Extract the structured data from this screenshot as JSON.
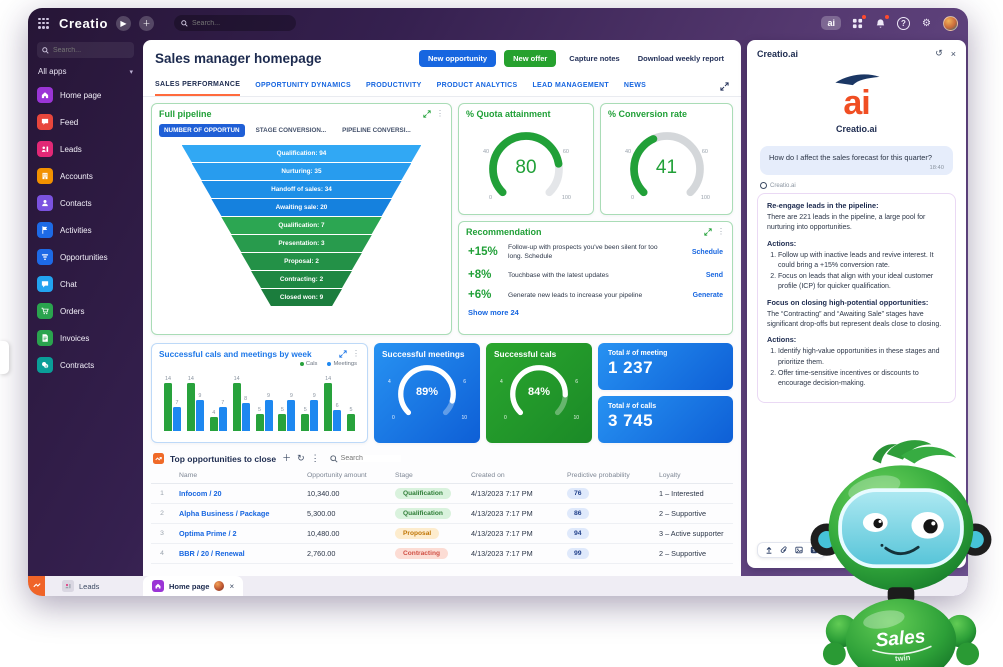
{
  "topbar": {
    "logo": "Creatio",
    "search_placeholder": "Search...",
    "ai_button": "ai"
  },
  "sidebar": {
    "search_placeholder": "Search...",
    "all_apps": "All apps",
    "items": [
      {
        "label": "Home page"
      },
      {
        "label": "Feed"
      },
      {
        "label": "Leads"
      },
      {
        "label": "Accounts"
      },
      {
        "label": "Contacts"
      },
      {
        "label": "Activities"
      },
      {
        "label": "Opportunities"
      },
      {
        "label": "Chat"
      },
      {
        "label": "Orders"
      },
      {
        "label": "Invoices"
      },
      {
        "label": "Contracts"
      }
    ]
  },
  "main": {
    "title": "Sales manager homepage",
    "buttons": {
      "new_opportunity": "New opportunity",
      "new_offer": "New offer",
      "capture_notes": "Capture notes",
      "download_report": "Download weekly report"
    },
    "tabs": [
      {
        "label": "SALES PERFORMANCE"
      },
      {
        "label": "OPPORTUNITY DYNAMICS"
      },
      {
        "label": "PRODUCTIVITY"
      },
      {
        "label": "PRODUCT ANALYTICS"
      },
      {
        "label": "LEAD MANAGEMENT"
      },
      {
        "label": "NEWS"
      }
    ]
  },
  "widgets": {
    "full_pipeline": {
      "title": "Full pipeline",
      "tabs": [
        "NUMBER OF OPPORTUN",
        "STAGE CONVERSION...",
        "PIPELINE CONVERSI..."
      ],
      "stages": [
        {
          "display": "Qualification:  94",
          "value": 94,
          "color": "#31a8f4"
        },
        {
          "display": "Nurturing:  35",
          "value": 35,
          "color": "#289cee"
        },
        {
          "display": "Handoff of sales:  34",
          "value": 34,
          "color": "#1e8fe7"
        },
        {
          "display": "Awaiting sale:  20",
          "value": 20,
          "color": "#1581de"
        },
        {
          "display": "Qualification:  7",
          "value": 7,
          "color": "#2ca652"
        },
        {
          "display": "Presentation:  3",
          "value": 3,
          "color": "#289b4d"
        },
        {
          "display": "Proposal:  2",
          "value": 2,
          "color": "#239147"
        },
        {
          "display": "Contracting:  2",
          "value": 2,
          "color": "#1f8742"
        },
        {
          "display": "Closed won:  9",
          "value": 9,
          "color": "#1b7d3d"
        }
      ]
    },
    "quota": {
      "title": "% Quota attainment",
      "value": 80,
      "max": 100,
      "ticks": {
        "start": "0",
        "low": "40",
        "high": "60",
        "end": "100"
      }
    },
    "conversion": {
      "title": "% Conversion rate",
      "value": 41,
      "max": 100,
      "ticks": {
        "start": "0",
        "low": "40",
        "high": "60",
        "end": "100"
      }
    },
    "recommendation": {
      "title": "Recommendation",
      "items": [
        {
          "delta": "+15%",
          "text": "Follow-up with prospects you've been silent for too long. Schedule",
          "action": "Schedule"
        },
        {
          "delta": "+8%",
          "text": "Touchbase with the latest updates",
          "action": "Send"
        },
        {
          "delta": "+6%",
          "text": "Generate new leads to increase your pipeline",
          "action": "Generate"
        }
      ],
      "show_more": "Show more 24"
    },
    "calls_meetings": {
      "title": "Successful cals and meetings by week",
      "legend": [
        "Cals",
        "Meetings"
      ],
      "colors": [
        "#28a23c",
        "#1e88f0"
      ],
      "pairs": [
        [
          14,
          7
        ],
        [
          14,
          9
        ],
        [
          4,
          7
        ],
        [
          14,
          8
        ],
        [
          5,
          9
        ],
        [
          5,
          9
        ],
        [
          5,
          9
        ],
        [
          14,
          6
        ],
        [
          5,
          null
        ]
      ]
    },
    "meetings_gauge": {
      "title": "Successful meetings",
      "value": 89,
      "display": "89%",
      "ticks": {
        "start": "0",
        "low": "4",
        "high": "6",
        "end": "10"
      }
    },
    "cals_gauge": {
      "title": "Successful cals",
      "value": 84,
      "display": "84%",
      "ticks": {
        "start": "0",
        "low": "4",
        "high": "6",
        "end": "10"
      }
    },
    "total_meetings": {
      "title": "Total # of meeting",
      "value": "1 237"
    },
    "total_calls": {
      "title": "Total # of calls",
      "value": "3 745"
    }
  },
  "table": {
    "title": "Top opportunities to close",
    "search_placeholder": "Search",
    "columns": [
      "Name",
      "Opportunity amount",
      "Stage",
      "Created on",
      "Predictive probability",
      "Loyalty"
    ],
    "rows": [
      {
        "num": "1",
        "name": "Infocom / 20",
        "amount": "10,340.00",
        "stage": "Qualification",
        "stage_variant": "green",
        "created": "4/13/2023 7:17 PM",
        "probability": "76",
        "loyalty": "1 – Interested"
      },
      {
        "num": "2",
        "name": "Alpha Business / Package",
        "amount": "5,300.00",
        "stage": "Qualification",
        "stage_variant": "green",
        "created": "4/13/2023 7:17 PM",
        "probability": "86",
        "loyalty": "2 – Supportive"
      },
      {
        "num": "3",
        "name": "Optima Prime / 2",
        "amount": "10,480.00",
        "stage": "Proposal",
        "stage_variant": "orange",
        "created": "4/13/2023 7:17 PM",
        "probability": "94",
        "loyalty": "3 – Active supporter"
      },
      {
        "num": "4",
        "name": "BBR / 20 / Renewal",
        "amount": "2,760.00",
        "stage": "Contracting",
        "stage_variant": "red",
        "created": "4/13/2023 7:17 PM",
        "probability": "99",
        "loyalty": "2 – Supportive"
      }
    ]
  },
  "ai": {
    "header": "Creatio.ai",
    "logo_text": "ai",
    "logo_label": "Creatio.ai",
    "user_message": "How do I affect the sales forecast for this quarter?",
    "time": "18:40",
    "sender": "Creatio.ai",
    "sections": [
      {
        "heading": "Re-engage leads in the pipeline:",
        "body": "There are 221 leads in the pipeline, a large pool for nurturing into opportunities.",
        "actions_label": "Actions:",
        "items": [
          "Follow up with inactive leads and revive interest. It could bring a +15% conversion rate.",
          "Focus on leads that align with your ideal customer profile (ICP) for quicker qualification."
        ]
      },
      {
        "heading": "Focus on closing high-potential opportunities:",
        "body": "The “Contracting” and “Awaiting Sale” stages have significant drop-offs but represent deals close to closing.",
        "actions_label": "Actions:",
        "items": [
          "Identify high-value opportunities in these stages and prioritize them.",
          "Offer time-sensitive incentives or discounts to encourage decision-making."
        ]
      }
    ],
    "robot_label": "Sales",
    "robot_sublabel": "twin"
  },
  "taskbar": {
    "leads_tab": "Leads",
    "home_tab": "Home page"
  },
  "accent_colors": {
    "blue": "#1766e0",
    "green": "#21a038",
    "orange": "#ff6a3d",
    "badge_red": "#ff4b2e"
  }
}
